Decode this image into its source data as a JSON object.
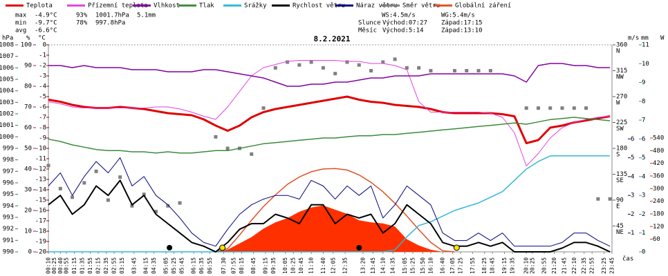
{
  "chart_data": {
    "type": "line",
    "title": "8.2.2021",
    "x_label": "čas",
    "x": [
      10,
      40,
      70,
      100,
      130,
      160,
      190,
      220,
      250,
      280,
      310,
      340,
      370,
      400,
      430,
      460,
      490,
      520,
      550,
      580,
      610,
      640,
      670,
      700,
      730,
      760,
      790,
      820,
      850,
      880,
      910,
      940,
      970,
      1000,
      1030,
      1060,
      1090,
      1120,
      1150,
      1180,
      1210,
      1240,
      1270,
      1300,
      1330,
      1360,
      1390,
      1420
    ],
    "xlim": [
      10,
      1425
    ],
    "xticks": [
      {
        "value": 10,
        "label": "00:10"
      },
      {
        "value": 25,
        "label": "00:25"
      },
      {
        "value": 40,
        "label": "00:40"
      },
      {
        "value": 55,
        "label": "00:55"
      },
      {
        "value": 75,
        "label": "01:15"
      },
      {
        "value": 95,
        "label": "01:35"
      },
      {
        "value": 115,
        "label": "01:55"
      },
      {
        "value": 135,
        "label": "02:15"
      },
      {
        "value": 155,
        "label": "02:35"
      },
      {
        "value": 175,
        "label": "02:55"
      },
      {
        "value": 195,
        "label": "03:15"
      },
      {
        "value": 225,
        "label": "03:45"
      },
      {
        "value": 255,
        "label": "04:15"
      },
      {
        "value": 275,
        "label": "04:35"
      },
      {
        "value": 305,
        "label": "05:05"
      },
      {
        "value": 325,
        "label": "05:25"
      },
      {
        "value": 345,
        "label": "05:45"
      },
      {
        "value": 375,
        "label": "06:15"
      },
      {
        "value": 395,
        "label": "06:35"
      },
      {
        "value": 415,
        "label": "06:55"
      },
      {
        "value": 450,
        "label": "07:30"
      },
      {
        "value": 475,
        "label": "07:55"
      },
      {
        "value": 495,
        "label": "08:15"
      },
      {
        "value": 525,
        "label": "08:45"
      },
      {
        "value": 555,
        "label": "09:15"
      },
      {
        "value": 575,
        "label": "09:35"
      },
      {
        "value": 605,
        "label": "10:05"
      },
      {
        "value": 625,
        "label": "10:25"
      },
      {
        "value": 645,
        "label": "10:45"
      },
      {
        "value": 670,
        "label": "11:10"
      },
      {
        "value": 700,
        "label": "11:40"
      },
      {
        "value": 725,
        "label": "12:05"
      },
      {
        "value": 755,
        "label": "12:35"
      },
      {
        "value": 800,
        "label": "13:20"
      },
      {
        "value": 825,
        "label": "13:45"
      },
      {
        "value": 850,
        "label": "14:10"
      },
      {
        "value": 875,
        "label": "14:35"
      },
      {
        "value": 905,
        "label": "15:05"
      },
      {
        "value": 925,
        "label": "15:25"
      },
      {
        "value": 950,
        "label": "15:50"
      },
      {
        "value": 970,
        "label": "16:10"
      },
      {
        "value": 1000,
        "label": "16:40"
      },
      {
        "value": 1025,
        "label": "17:05"
      },
      {
        "value": 1045,
        "label": "17:25"
      },
      {
        "value": 1075,
        "label": "17:55"
      },
      {
        "value": 1105,
        "label": "18:25"
      },
      {
        "value": 1125,
        "label": "18:45"
      },
      {
        "value": 1155,
        "label": "19:15"
      },
      {
        "value": 1175,
        "label": "19:35"
      },
      {
        "value": 1210,
        "label": "20:10"
      },
      {
        "value": 1225,
        "label": "20:25"
      },
      {
        "value": 1255,
        "label": "20:55"
      },
      {
        "value": 1280,
        "label": "21:20"
      },
      {
        "value": 1305,
        "label": "21:45"
      },
      {
        "value": 1330,
        "label": "22:10"
      },
      {
        "value": 1355,
        "label": "22:35"
      },
      {
        "value": 1375,
        "label": "22:55"
      },
      {
        "value": 1405,
        "label": "23:25"
      },
      {
        "value": 1425,
        "label": "23:45"
      }
    ],
    "axes": {
      "hpa": {
        "unit": "hPa",
        "color": "#2e7d32",
        "ylim": [
          990,
          1008
        ],
        "yticks": [
          990,
          991,
          992,
          993,
          994,
          995,
          996,
          997,
          998,
          999,
          1000,
          1001,
          1002,
          1003,
          1004,
          1005,
          1006,
          1007,
          1008
        ]
      },
      "pct": {
        "unit": "%",
        "color": "#a0106a",
        "ylim": [
          0,
          100
        ],
        "yticks": [
          0,
          10,
          20,
          30,
          40,
          50,
          60,
          70,
          80,
          90,
          100
        ]
      },
      "temp": {
        "unit": "°C",
        "color": "#b00000",
        "ylim": [
          -20,
          0
        ],
        "yticks": [
          0,
          -1,
          -2,
          -3,
          -4,
          -5,
          -6,
          -7,
          -8,
          -9,
          -10,
          -11,
          -12,
          -13,
          -14,
          -15,
          -16,
          -17,
          -18,
          -19,
          -20
        ]
      },
      "dir": {
        "color": "#555555",
        "ylim": [
          0,
          360
        ],
        "yticks": [
          45,
          90,
          135,
          180,
          225,
          270,
          315,
          360
        ],
        "tick_names": [
          "NE",
          "E",
          "SE",
          "S",
          "SW",
          "W",
          "NW",
          "N"
        ]
      },
      "ms": {
        "unit": "m/s",
        "color": "#000080",
        "ylim": [
          0,
          11
        ],
        "yticks": [
          1,
          2,
          3,
          4,
          5,
          6
        ]
      },
      "mm": {
        "unit": "mm",
        "color": "#1aa0c8",
        "ylim": [
          0,
          11
        ],
        "yticks": [
          0,
          1,
          2,
          3,
          4,
          5,
          6,
          7,
          8,
          9,
          10,
          11
        ]
      },
      "rad": {
        "unit": "W",
        "color": "#d03000",
        "ylim": [
          0,
          540
        ],
        "yticks": [
          60,
          120,
          180,
          240,
          300,
          360,
          420,
          480,
          540
        ]
      }
    },
    "series": [
      {
        "name": "Teplota",
        "color": "#e00000",
        "axis": "temp",
        "kind": "line",
        "width": 3,
        "values": [
          -5.3,
          -5.5,
          -5.8,
          -6.0,
          -6.1,
          -6.1,
          -6.0,
          -6.1,
          -6.2,
          -6.4,
          -6.6,
          -6.7,
          -6.8,
          -7.2,
          -7.8,
          -8.3,
          -7.8,
          -7.0,
          -6.5,
          -6.2,
          -6.0,
          -5.8,
          -5.6,
          -5.4,
          -5.2,
          -5.0,
          -5.3,
          -5.5,
          -5.6,
          -5.8,
          -5.9,
          -6.0,
          -6.2,
          -6.5,
          -6.6,
          -6.6,
          -6.6,
          -6.6,
          -6.7,
          -6.9,
          -9.5,
          -9.2,
          -8.0,
          -7.8,
          -7.5,
          -7.3,
          -7.1,
          -6.9
        ]
      },
      {
        "name": "Přízemní teplota",
        "color": "#e040e0",
        "axis": "temp",
        "kind": "line",
        "width": 1,
        "values": [
          -5.5,
          -5.7,
          -6.0,
          -6.1,
          -6.1,
          -6.1,
          -6.1,
          -6.1,
          -6.1,
          -6.0,
          -6.0,
          -6.2,
          -6.5,
          -6.9,
          -7.2,
          -6.0,
          -4.5,
          -3.0,
          -2.2,
          -1.9,
          -1.6,
          -1.5,
          -1.5,
          -1.5,
          -1.5,
          -1.6,
          -1.6,
          -1.8,
          -1.8,
          -2.0,
          -2.4,
          -5.5,
          -6.5,
          -6.5,
          -6.5,
          -6.5,
          -6.5,
          -6.6,
          -7.0,
          -8.5,
          -11.7,
          -10.5,
          -9.0,
          -8.0,
          -7.5,
          -7.2,
          -7.0,
          -6.9
        ]
      },
      {
        "name": "Vlhkost",
        "color": "#8000a0",
        "axis": "pct",
        "kind": "line",
        "width": 1.5,
        "values": [
          90,
          90,
          89,
          90,
          89,
          89,
          89,
          88,
          88,
          88,
          87,
          87,
          87,
          88,
          88,
          87,
          86,
          85,
          84,
          82,
          80,
          80,
          81,
          81,
          82,
          82,
          83,
          84,
          84,
          85,
          85,
          85,
          86,
          86,
          86,
          86,
          86,
          86,
          86,
          85,
          82,
          90,
          91,
          91,
          90,
          90,
          89,
          89
        ]
      },
      {
        "name": "Tlak",
        "color": "#3a8a3a",
        "axis": "hpa",
        "kind": "line",
        "width": 1.5,
        "values": [
          999.8,
          999.6,
          999.3,
          999.1,
          998.9,
          998.8,
          998.8,
          998.7,
          998.7,
          998.6,
          998.7,
          998.6,
          998.6,
          998.7,
          998.8,
          998.8,
          999.0,
          999.2,
          999.4,
          999.5,
          999.6,
          999.7,
          999.8,
          999.9,
          999.9,
          1000.0,
          1000.1,
          1000.1,
          1000.2,
          1000.2,
          1000.3,
          1000.4,
          1000.5,
          1000.6,
          1000.7,
          1000.8,
          1000.9,
          1001.0,
          1001.1,
          1001.2,
          1001.1,
          1001.3,
          1001.5,
          1001.6,
          1001.7,
          1001.6,
          1001.5,
          1001.4
        ]
      },
      {
        "name": "Srážky",
        "color": "#30b8d8",
        "axis": "mm",
        "kind": "line",
        "width": 1.5,
        "values": [
          0,
          0,
          0,
          0,
          0,
          0,
          0,
          0,
          0,
          0,
          0,
          0,
          0,
          0,
          0,
          0,
          0,
          0,
          0,
          0,
          0,
          0,
          0,
          0,
          0,
          0,
          0,
          0,
          0,
          0.1,
          0.8,
          1.4,
          1.6,
          1.9,
          2.2,
          2.4,
          2.6,
          2.9,
          3.2,
          3.8,
          4.4,
          4.8,
          5.1,
          5.1,
          5.1,
          5.1,
          5.1,
          5.1
        ]
      },
      {
        "name": "Rychlost větru",
        "color": "#000000",
        "axis": "ms",
        "kind": "line",
        "width": 2,
        "values": [
          2.5,
          3.0,
          2.0,
          2.5,
          3.5,
          3.0,
          3.8,
          2.5,
          3.0,
          2.0,
          1.5,
          1.0,
          0.5,
          0.3,
          0,
          0.5,
          1.2,
          1.5,
          1.5,
          2.0,
          1.8,
          1.5,
          2.5,
          2.5,
          1.5,
          2.0,
          1.8,
          2.0,
          1.0,
          1.5,
          2.5,
          2.0,
          1.5,
          0.5,
          0.3,
          0.3,
          0.5,
          0.3,
          0.5,
          0,
          0,
          0,
          0,
          0.2,
          0.5,
          0.5,
          0.3,
          0
        ]
      },
      {
        "name": "Náraz větru",
        "color": "#000080",
        "axis": "ms",
        "kind": "line",
        "width": 1,
        "values": [
          3.5,
          4.2,
          3.0,
          4.0,
          4.8,
          4.2,
          5.0,
          3.5,
          4.0,
          3.0,
          2.5,
          1.8,
          1.0,
          0.5,
          0.3,
          1.2,
          2.0,
          2.5,
          2.8,
          3.0,
          3.0,
          2.8,
          3.8,
          3.5,
          2.8,
          3.5,
          3.0,
          3.5,
          1.8,
          2.5,
          3.5,
          3.0,
          2.5,
          1.0,
          0.6,
          0.6,
          1.0,
          0.6,
          1.0,
          0.3,
          0.3,
          0.3,
          0.3,
          0.5,
          1.0,
          1.0,
          0.6,
          0.3
        ]
      },
      {
        "name": "Směr větru",
        "color": "#808080",
        "axis": "dir",
        "kind": "scatter",
        "values": [
          150,
          110,
          95,
          120,
          140,
          90,
          130,
          80,
          100,
          70,
          80,
          85,
          null,
          null,
          200,
          180,
          180,
          170,
          250,
          320,
          330,
          325,
          330,
          320,
          310,
          330,
          325,
          315,
          330,
          335,
          320,
          320,
          315,
          null,
          315,
          315,
          315,
          315,
          null,
          null,
          250,
          250,
          250,
          250,
          250,
          250,
          92,
          92
        ]
      },
      {
        "name": "Globální záření",
        "color": "#ff3000",
        "line_color": "#e05020",
        "axis": "rad",
        "kind": "area",
        "values": [
          0,
          0,
          0,
          0,
          0,
          0,
          0,
          0,
          0,
          0,
          0,
          0,
          0,
          0,
          0,
          10,
          40,
          70,
          110,
          140,
          160,
          190,
          210,
          220,
          200,
          180,
          150,
          140,
          135,
          120,
          60,
          30,
          10,
          0,
          0,
          0,
          0,
          0,
          0,
          0,
          0,
          0,
          0,
          0,
          0,
          0,
          0,
          0
        ],
        "clear_sky_values": [
          null,
          null,
          null,
          null,
          null,
          null,
          null,
          null,
          null,
          null,
          null,
          null,
          null,
          null,
          0,
          15,
          80,
          150,
          215,
          270,
          320,
          355,
          380,
          393,
          395,
          388,
          365,
          330,
          285,
          230,
          170,
          105,
          45,
          5,
          0,
          null,
          null,
          null,
          null,
          null,
          null,
          null,
          null,
          null,
          null,
          null,
          null,
          null
        ]
      }
    ],
    "sun_x": [
      447,
      1035
    ],
    "moon_x": [
      314,
      790
    ],
    "stats": [
      {
        "label": "max",
        "temp": "-4.9°C",
        "hum": "93%",
        "press": "1001.7hPa",
        "rain": "5.1mm"
      },
      {
        "label": "min",
        "temp": "-9.7°C",
        "hum": "78%",
        "press": "997.8hPa"
      },
      {
        "label": "avg",
        "temp": "-6.6°C"
      }
    ],
    "info": {
      "ws": "WS:4.5m/s",
      "wg": "WG:5.4m/s",
      "sun": "Slunce",
      "sun_rise": "Východ:07:27",
      "sun_set": "Západ:17:15",
      "moon": "Měsíc",
      "moon_rise": "Východ:5:14",
      "moon_set": "Západ:13:10"
    }
  }
}
